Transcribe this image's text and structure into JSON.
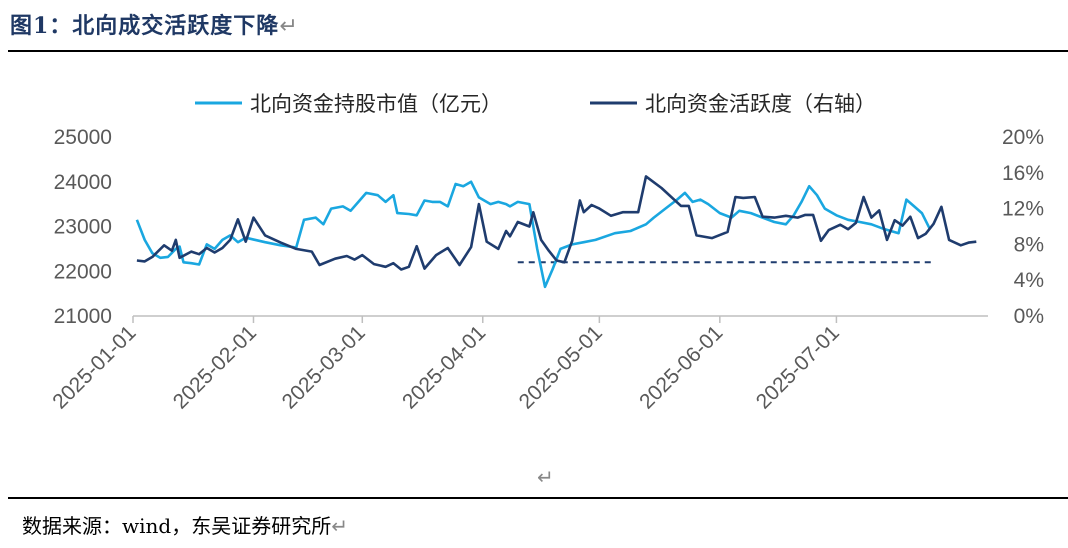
{
  "title": "图1：北向成交活跃度下降",
  "return_mark": "↵",
  "source": "数据来源：wind，东吴证券研究所",
  "colors": {
    "series1": "#1aa7e0",
    "series2": "#1f3c6e",
    "title": "#1f3864"
  },
  "chart_data": {
    "type": "line",
    "legend_position": "top",
    "grid": false,
    "x_ticks": [
      "2025-01-01",
      "2025-02-01",
      "2025-03-01",
      "2025-04-01",
      "2025-05-01",
      "2025-06-01",
      "2025-07-01"
    ],
    "y_left": {
      "range": [
        21000,
        25000
      ],
      "ticks": [
        "21000",
        "22000",
        "23000",
        "24000",
        "25000"
      ]
    },
    "y_right": {
      "range": [
        0,
        20
      ],
      "ticks": [
        "0%",
        "4%",
        "8%",
        "12%",
        "16%",
        "20%"
      ]
    },
    "reference_line": {
      "axis": "right",
      "value": 6.0,
      "from": "2025-04-10",
      "to": "2025-07-26"
    },
    "series": [
      {
        "name": "北向资金持股市值（亿元）",
        "axis": "left",
        "points": [
          [
            "2025-01-02",
            23150
          ],
          [
            "2025-01-04",
            22700
          ],
          [
            "2025-01-06",
            22400
          ],
          [
            "2025-01-08",
            22300
          ],
          [
            "2025-01-10",
            22320
          ],
          [
            "2025-01-12",
            22500
          ],
          [
            "2025-01-13",
            22550
          ],
          [
            "2025-01-14",
            22200
          ],
          [
            "2025-01-16",
            22180
          ],
          [
            "2025-01-18",
            22150
          ],
          [
            "2025-01-20",
            22600
          ],
          [
            "2025-01-22",
            22500
          ],
          [
            "2025-01-24",
            22700
          ],
          [
            "2025-01-26",
            22800
          ],
          [
            "2025-01-28",
            22650
          ],
          [
            "2025-01-30",
            22750
          ],
          [
            "2025-02-04",
            22650
          ],
          [
            "2025-02-08",
            22580
          ],
          [
            "2025-02-12",
            22530
          ],
          [
            "2025-02-14",
            23150
          ],
          [
            "2025-02-17",
            23200
          ],
          [
            "2025-02-19",
            23050
          ],
          [
            "2025-02-21",
            23400
          ],
          [
            "2025-02-24",
            23450
          ],
          [
            "2025-02-26",
            23350
          ],
          [
            "2025-02-28",
            23550
          ],
          [
            "2025-03-02",
            23750
          ],
          [
            "2025-03-05",
            23700
          ],
          [
            "2025-03-07",
            23550
          ],
          [
            "2025-03-09",
            23700
          ],
          [
            "2025-03-10",
            23300
          ],
          [
            "2025-03-13",
            23280
          ],
          [
            "2025-03-15",
            23250
          ],
          [
            "2025-03-17",
            23580
          ],
          [
            "2025-03-19",
            23550
          ],
          [
            "2025-03-21",
            23550
          ],
          [
            "2025-03-23",
            23450
          ],
          [
            "2025-03-25",
            23950
          ],
          [
            "2025-03-27",
            23900
          ],
          [
            "2025-03-29",
            24000
          ],
          [
            "2025-03-31",
            23650
          ],
          [
            "2025-04-03",
            23500
          ],
          [
            "2025-04-05",
            23550
          ],
          [
            "2025-04-07",
            23500
          ],
          [
            "2025-04-08",
            23450
          ],
          [
            "2025-04-10",
            23550
          ],
          [
            "2025-04-13",
            23500
          ],
          [
            "2025-04-15",
            22500
          ],
          [
            "2025-04-17",
            21650
          ],
          [
            "2025-04-19",
            22050
          ],
          [
            "2025-04-21",
            22500
          ],
          [
            "2025-04-24",
            22600
          ],
          [
            "2025-04-27",
            22650
          ],
          [
            "2025-04-30",
            22700
          ],
          [
            "2025-05-05",
            22850
          ],
          [
            "2025-05-09",
            22900
          ],
          [
            "2025-05-13",
            23050
          ],
          [
            "2025-05-15",
            23200
          ],
          [
            "2025-05-18",
            23400
          ],
          [
            "2025-05-21",
            23600
          ],
          [
            "2025-05-23",
            23750
          ],
          [
            "2025-05-25",
            23550
          ],
          [
            "2025-05-27",
            23600
          ],
          [
            "2025-05-29",
            23500
          ],
          [
            "2025-06-01",
            23300
          ],
          [
            "2025-06-04",
            23200
          ],
          [
            "2025-06-06",
            23350
          ],
          [
            "2025-06-09",
            23300
          ],
          [
            "2025-06-12",
            23200
          ],
          [
            "2025-06-15",
            23100
          ],
          [
            "2025-06-18",
            23050
          ],
          [
            "2025-06-20",
            23250
          ],
          [
            "2025-06-22",
            23550
          ],
          [
            "2025-06-24",
            23900
          ],
          [
            "2025-06-26",
            23700
          ],
          [
            "2025-06-28",
            23400
          ],
          [
            "2025-07-01",
            23250
          ],
          [
            "2025-07-04",
            23150
          ],
          [
            "2025-07-07",
            23100
          ],
          [
            "2025-07-10",
            23050
          ],
          [
            "2025-07-13",
            22950
          ],
          [
            "2025-07-15",
            22900
          ],
          [
            "2025-07-17",
            22850
          ],
          [
            "2025-07-19",
            23600
          ],
          [
            "2025-07-21",
            23450
          ],
          [
            "2025-07-23",
            23300
          ],
          [
            "2025-07-25",
            22950
          ]
        ]
      },
      {
        "name": "北向资金活跃度（右轴）",
        "axis": "right",
        "points": [
          [
            "2025-01-02",
            6.2
          ],
          [
            "2025-01-04",
            6.1
          ],
          [
            "2025-01-06",
            6.6
          ],
          [
            "2025-01-09",
            7.9
          ],
          [
            "2025-01-11",
            7.3
          ],
          [
            "2025-01-12",
            8.5
          ],
          [
            "2025-01-13",
            6.5
          ],
          [
            "2025-01-16",
            7.2
          ],
          [
            "2025-01-18",
            6.9
          ],
          [
            "2025-01-20",
            7.6
          ],
          [
            "2025-01-22",
            7.1
          ],
          [
            "2025-01-24",
            7.6
          ],
          [
            "2025-01-26",
            8.5
          ],
          [
            "2025-01-28",
            10.8
          ],
          [
            "2025-01-30",
            8.3
          ],
          [
            "2025-02-01",
            11.0
          ],
          [
            "2025-02-04",
            9.0
          ],
          [
            "2025-02-08",
            8.2
          ],
          [
            "2025-02-12",
            7.5
          ],
          [
            "2025-02-16",
            7.2
          ],
          [
            "2025-02-18",
            5.7
          ],
          [
            "2025-02-22",
            6.4
          ],
          [
            "2025-02-25",
            6.7
          ],
          [
            "2025-02-27",
            6.3
          ],
          [
            "2025-03-01",
            6.8
          ],
          [
            "2025-03-04",
            5.8
          ],
          [
            "2025-03-07",
            5.5
          ],
          [
            "2025-03-09",
            5.9
          ],
          [
            "2025-03-11",
            5.2
          ],
          [
            "2025-03-13",
            5.5
          ],
          [
            "2025-03-15",
            7.8
          ],
          [
            "2025-03-17",
            5.3
          ],
          [
            "2025-03-20",
            6.8
          ],
          [
            "2025-03-23",
            7.6
          ],
          [
            "2025-03-26",
            5.7
          ],
          [
            "2025-03-29",
            7.7
          ],
          [
            "2025-03-31",
            12.5
          ],
          [
            "2025-04-02",
            8.3
          ],
          [
            "2025-04-05",
            7.5
          ],
          [
            "2025-04-07",
            9.5
          ],
          [
            "2025-04-08",
            8.9
          ],
          [
            "2025-04-10",
            10.5
          ],
          [
            "2025-04-13",
            10.0
          ],
          [
            "2025-04-14",
            11.6
          ],
          [
            "2025-04-16",
            8.5
          ],
          [
            "2025-04-18",
            7.3
          ],
          [
            "2025-04-20",
            6.2
          ],
          [
            "2025-04-22",
            6.0
          ],
          [
            "2025-04-24",
            8.4
          ],
          [
            "2025-04-26",
            12.9
          ],
          [
            "2025-04-27",
            11.6
          ],
          [
            "2025-04-29",
            12.4
          ],
          [
            "2025-05-01",
            12.0
          ],
          [
            "2025-05-04",
            11.2
          ],
          [
            "2025-05-07",
            11.6
          ],
          [
            "2025-05-11",
            11.6
          ],
          [
            "2025-05-13",
            15.6
          ],
          [
            "2025-05-17",
            14.3
          ],
          [
            "2025-05-22",
            12.3
          ],
          [
            "2025-05-24",
            12.3
          ],
          [
            "2025-05-26",
            9.0
          ],
          [
            "2025-05-30",
            8.7
          ],
          [
            "2025-06-03",
            9.4
          ],
          [
            "2025-06-05",
            13.3
          ],
          [
            "2025-06-07",
            13.2
          ],
          [
            "2025-06-10",
            13.3
          ],
          [
            "2025-06-12",
            11.1
          ],
          [
            "2025-06-15",
            11.0
          ],
          [
            "2025-06-18",
            11.2
          ],
          [
            "2025-06-21",
            11.0
          ],
          [
            "2025-06-23",
            11.3
          ],
          [
            "2025-06-25",
            11.3
          ],
          [
            "2025-06-27",
            8.4
          ],
          [
            "2025-06-29",
            9.6
          ],
          [
            "2025-07-02",
            10.2
          ],
          [
            "2025-07-04",
            9.7
          ],
          [
            "2025-07-06",
            10.4
          ],
          [
            "2025-07-08",
            13.3
          ],
          [
            "2025-07-10",
            11.0
          ],
          [
            "2025-07-12",
            11.8
          ],
          [
            "2025-07-14",
            8.5
          ],
          [
            "2025-07-16",
            10.7
          ],
          [
            "2025-07-18",
            10.1
          ],
          [
            "2025-07-20",
            11.1
          ],
          [
            "2025-07-22",
            8.7
          ],
          [
            "2025-07-24",
            9.2
          ],
          [
            "2025-07-26",
            10.3
          ],
          [
            "2025-07-28",
            12.2
          ],
          [
            "2025-07-30",
            8.5
          ],
          [
            "2025-08-02",
            7.9
          ],
          [
            "2025-08-04",
            8.2
          ],
          [
            "2025-08-06",
            8.3
          ]
        ]
      }
    ]
  }
}
